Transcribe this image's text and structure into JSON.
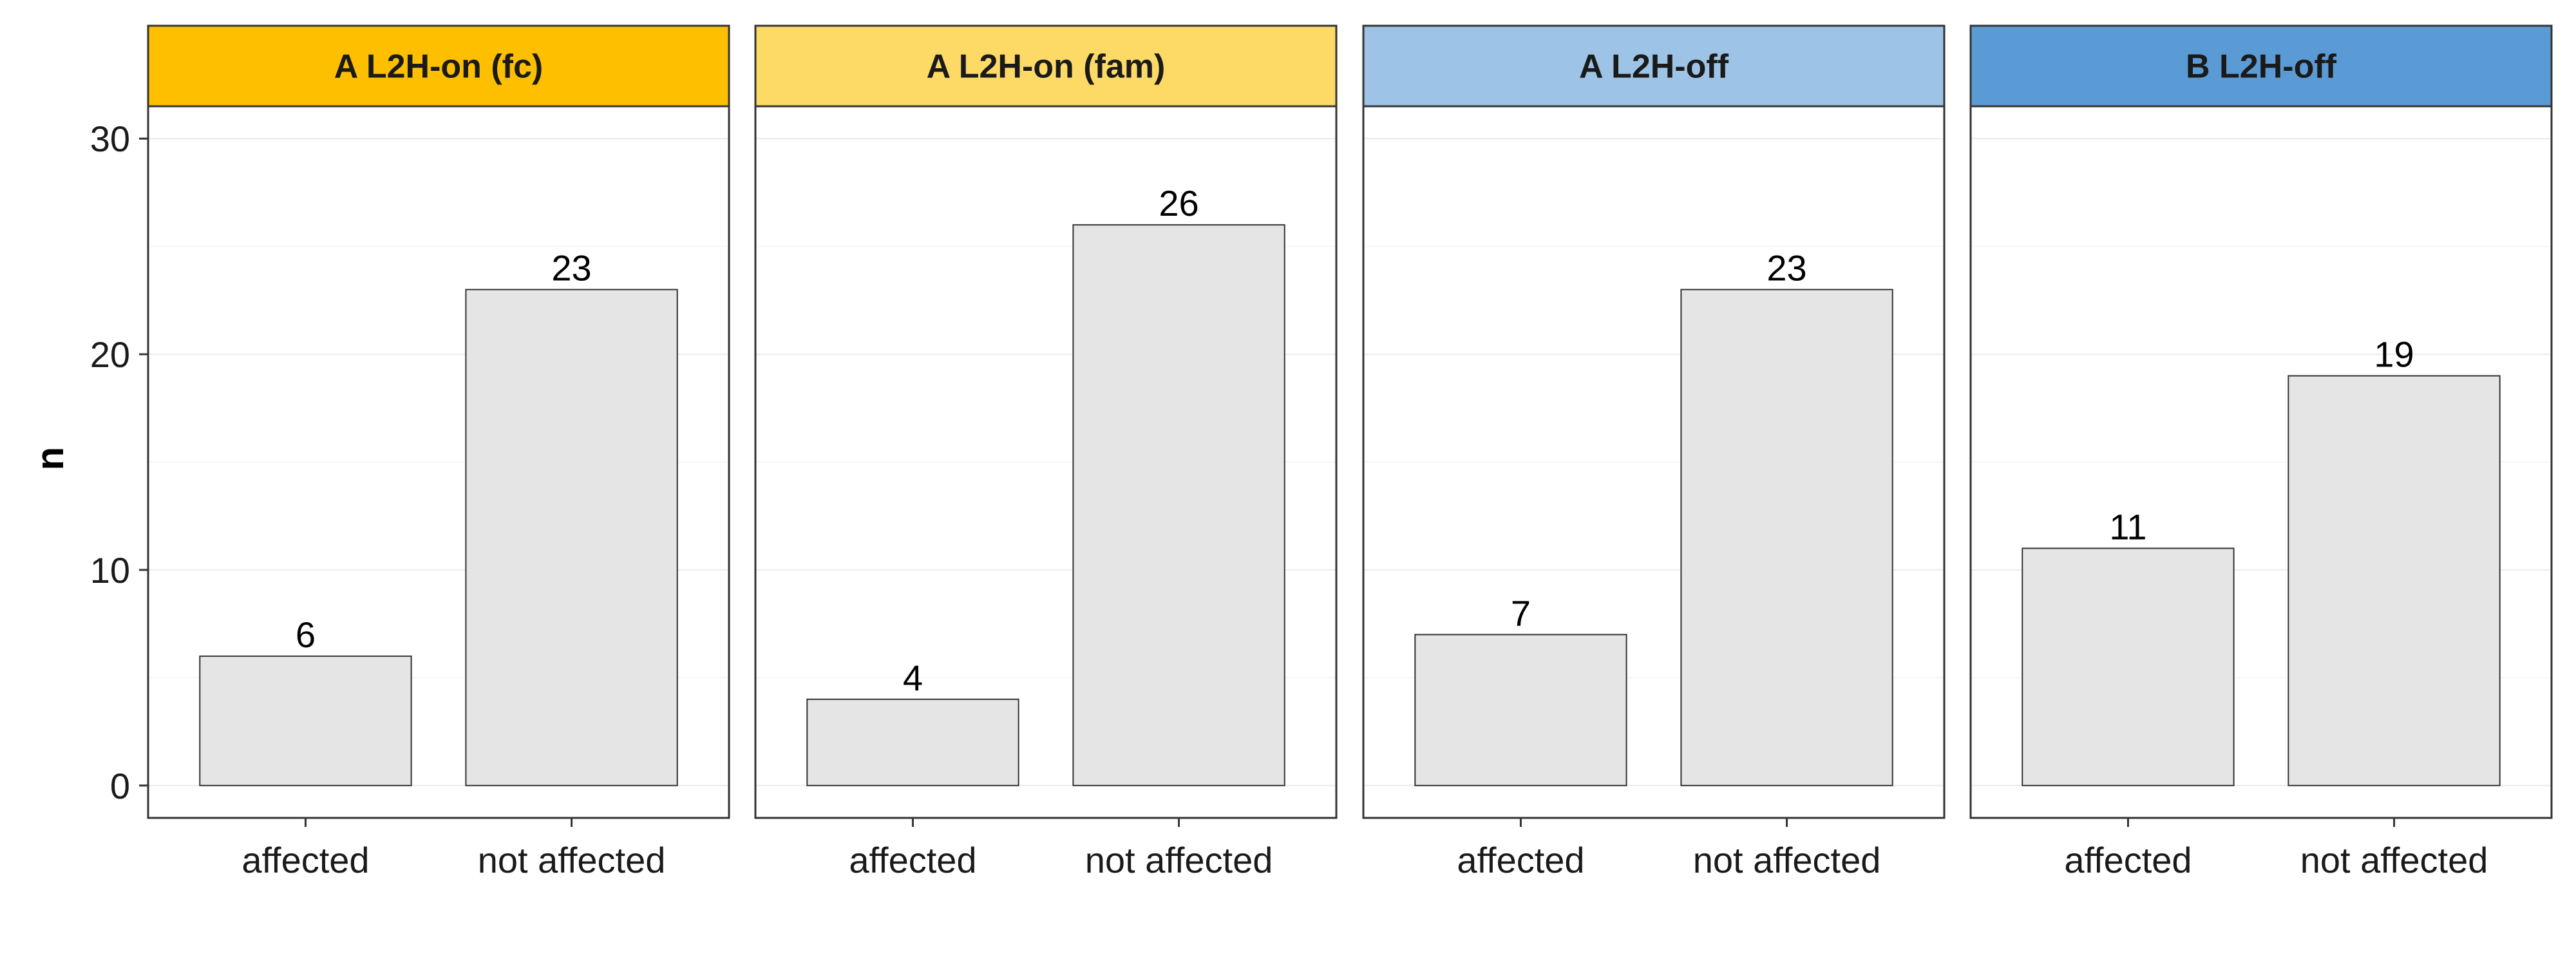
{
  "chart_data": {
    "type": "bar",
    "ylabel": "n",
    "xlabel": "",
    "ylim": [
      -1.5,
      31.5
    ],
    "yticks": [
      0,
      10,
      20,
      30
    ],
    "grid": true,
    "categories": [
      "affected",
      "not affected"
    ],
    "bar_color": "#e5e5e5",
    "panels": [
      {
        "title": "A L2H-on (fc)",
        "strip_color": "#fdbf00",
        "values": [
          6,
          23
        ]
      },
      {
        "title": "A L2H-on (fam)",
        "strip_color": "#fdda66",
        "values": [
          4,
          26
        ]
      },
      {
        "title": "A L2H-off",
        "strip_color": "#9dc3e6",
        "values": [
          7,
          23
        ]
      },
      {
        "title": "B L2H-off",
        "strip_color": "#5b9bd5",
        "values": [
          11,
          19
        ]
      }
    ]
  }
}
